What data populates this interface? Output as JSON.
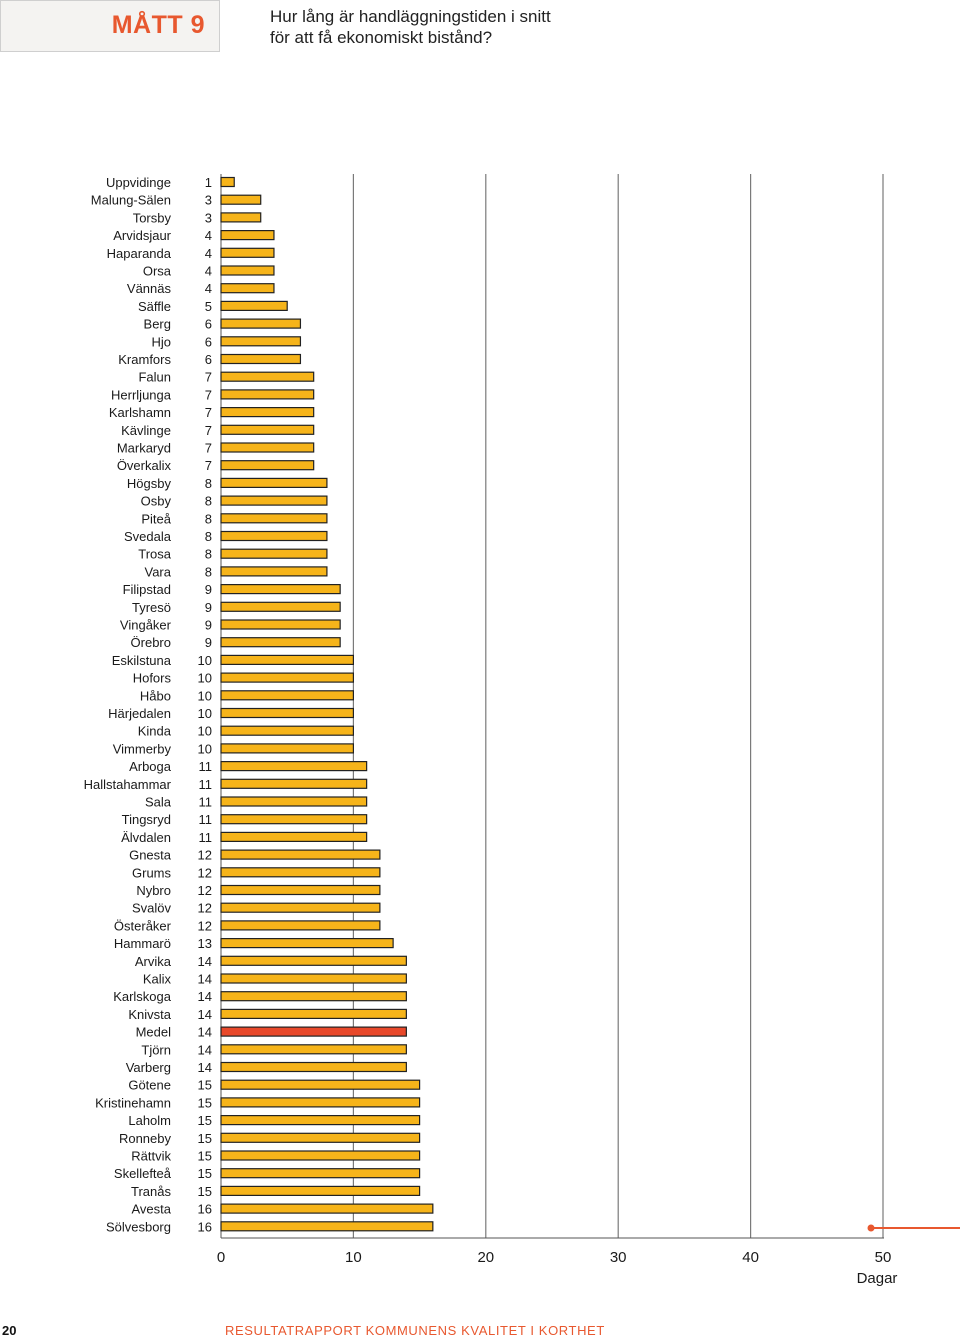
{
  "header": {
    "tag": "MÅTT 9",
    "question_line1": "Hur lång är handläggningstiden i snitt",
    "question_line2": "för att få ekonomiskt bistånd?"
  },
  "footer": {
    "page_number": "20",
    "report_title": "RESULTATRAPPORT KOMMUNENS KVALITET I KORTHET"
  },
  "colors": {
    "bar_fill": "#f6b41a",
    "highlight_fill": "#e8482a",
    "accent": "#e8582f",
    "grid": "#7a7a7a"
  },
  "chart_data": {
    "type": "bar",
    "orientation": "horizontal",
    "xlabel": "Dagar",
    "xlim": [
      0,
      50
    ],
    "xticks": [
      0,
      10,
      20,
      30,
      40,
      50
    ],
    "grid": "vertical",
    "highlight_category": "Medel",
    "categories": [
      "Uppvidinge",
      "Malung-Sälen",
      "Torsby",
      "Arvidsjaur",
      "Haparanda",
      "Orsa",
      "Vännäs",
      "Säffle",
      "Berg",
      "Hjo",
      "Kramfors",
      "Falun",
      "Herrljunga",
      "Karlshamn",
      "Kävlinge",
      "Markaryd",
      "Överkalix",
      "Högsby",
      "Osby",
      "Piteå",
      "Svedala",
      "Trosa",
      "Vara",
      "Filipstad",
      "Tyresö",
      "Vingåker",
      "Örebro",
      "Eskilstuna",
      "Hofors",
      "Håbo",
      "Härjedalen",
      "Kinda",
      "Vimmerby",
      "Arboga",
      "Hallstahammar",
      "Sala",
      "Tingsryd",
      "Älvdalen",
      "Gnesta",
      "Grums",
      "Nybro",
      "Svalöv",
      "Österåker",
      "Hammarö",
      "Arvika",
      "Kalix",
      "Karlskoga",
      "Knivsta",
      "Medel",
      "Tjörn",
      "Varberg",
      "Götene",
      "Kristinehamn",
      "Laholm",
      "Ronneby",
      "Rättvik",
      "Skellefteå",
      "Tranås",
      "Avesta",
      "Sölvesborg"
    ],
    "values": [
      1,
      3,
      3,
      4,
      4,
      4,
      4,
      5,
      6,
      6,
      6,
      7,
      7,
      7,
      7,
      7,
      7,
      8,
      8,
      8,
      8,
      8,
      8,
      9,
      9,
      9,
      9,
      10,
      10,
      10,
      10,
      10,
      10,
      11,
      11,
      11,
      11,
      11,
      12,
      12,
      12,
      12,
      12,
      13,
      14,
      14,
      14,
      14,
      14,
      14,
      14,
      15,
      15,
      15,
      15,
      15,
      15,
      15,
      16,
      16
    ]
  }
}
